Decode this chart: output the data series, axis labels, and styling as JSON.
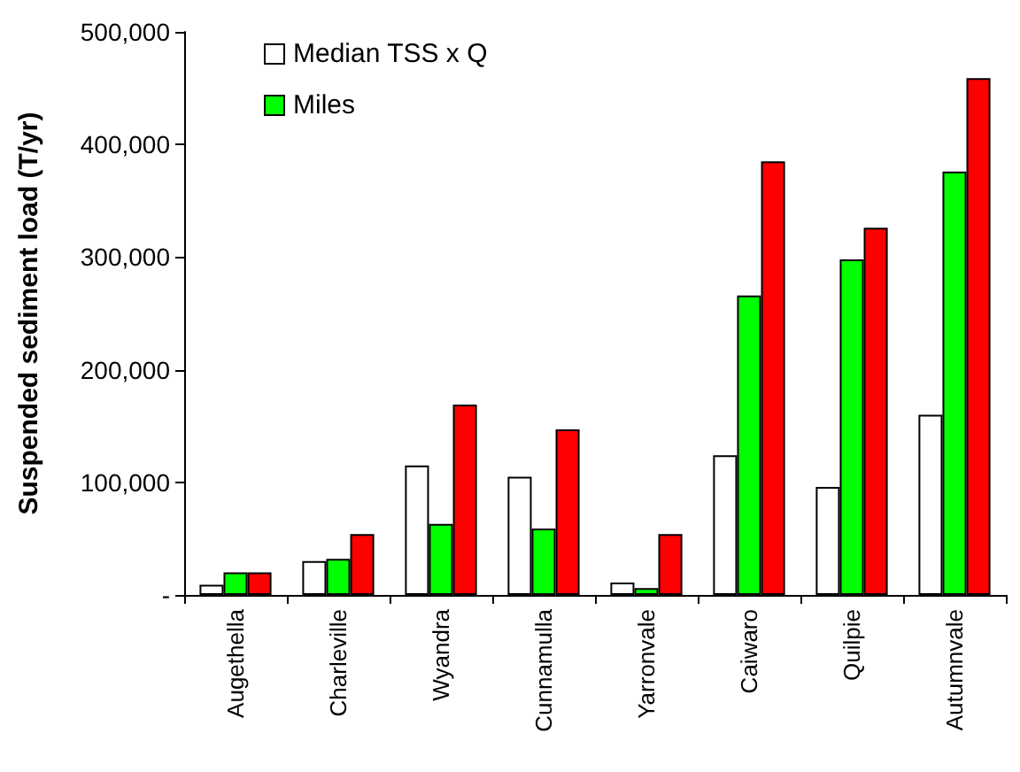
{
  "chart_data": {
    "type": "bar",
    "ylabel": "Suspended sediment load (T/yr)",
    "categories": [
      "Augethella",
      "Charleville",
      "Wyandra",
      "Cunnamulla",
      "Yarronvale",
      "Caiwaro",
      "Quilpie",
      "Autumnvale"
    ],
    "series": [
      {
        "name": "Median TSS x Q",
        "color": "#ffffff",
        "values": [
          9000,
          30000,
          115000,
          105000,
          11000,
          124000,
          96000,
          160000
        ]
      },
      {
        "name": "Miles",
        "color": "#00ff00",
        "values": [
          20000,
          32000,
          63000,
          59000,
          6000,
          266000,
          298000,
          376000
        ]
      },
      {
        "color": "#ff0000",
        "values": [
          20000,
          54000,
          169000,
          147000,
          54000,
          385000,
          326000,
          459000
        ]
      }
    ],
    "ylim": [
      0,
      500000
    ],
    "yticks": [
      {
        "value": 0,
        "label": "-"
      },
      {
        "value": 100000,
        "label": "100,000"
      },
      {
        "value": 200000,
        "label": "200,000"
      },
      {
        "value": 300000,
        "label": "300,000"
      },
      {
        "value": 400000,
        "label": "400,000"
      },
      {
        "value": 500000,
        "label": "500,000"
      }
    ],
    "grid": false,
    "legend": "top left"
  }
}
